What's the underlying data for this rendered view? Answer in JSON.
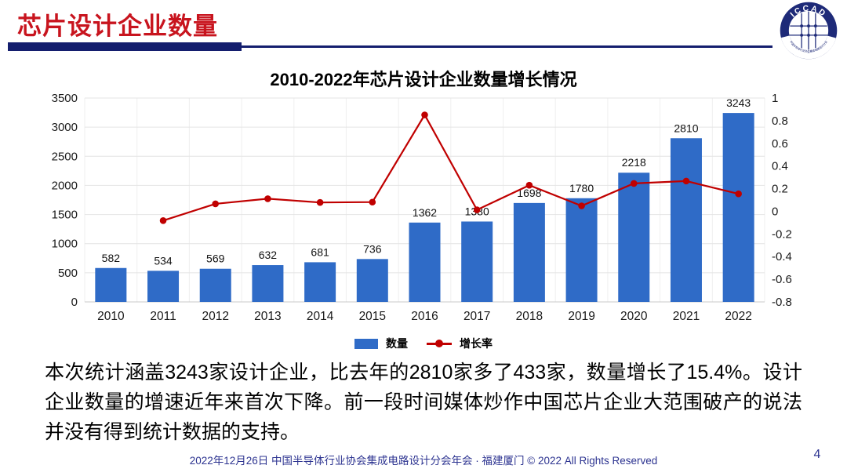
{
  "header": {
    "title": "芯片设计企业数量",
    "logo_text": "ICCAD",
    "logo_subtext": "中国半导体行业协会集成电路设计分会"
  },
  "chart_data": {
    "type": "bar",
    "title": "2010-2022年芯片设计企业数量增长情况",
    "categories": [
      "2010",
      "2011",
      "2012",
      "2013",
      "2014",
      "2015",
      "2016",
      "2017",
      "2018",
      "2019",
      "2020",
      "2021",
      "2022"
    ],
    "series": [
      {
        "name": "数量",
        "type": "bar",
        "axis": "left",
        "color": "#2f6bc7",
        "values": [
          582,
          534,
          569,
          632,
          681,
          736,
          1362,
          1380,
          1698,
          1780,
          2218,
          2810,
          3243
        ]
      },
      {
        "name": "增长率",
        "type": "line",
        "axis": "right",
        "color": "#c00000",
        "values": [
          null,
          -0.082,
          0.066,
          0.111,
          0.078,
          0.081,
          0.851,
          0.013,
          0.23,
          0.048,
          0.246,
          0.267,
          0.154
        ]
      }
    ],
    "left_axis": {
      "min": 0,
      "max": 3500,
      "ticks": [
        0,
        500,
        1000,
        1500,
        2000,
        2500,
        3000,
        3500
      ]
    },
    "right_axis": {
      "min": -0.8,
      "max": 1,
      "ticks": [
        1,
        0.8,
        0.6,
        0.4,
        0.2,
        0,
        -0.2,
        -0.4,
        -0.6,
        -0.8
      ]
    },
    "grid": true,
    "legend_position": "bottom"
  },
  "body": {
    "paragraph": "本次统计涵盖3243家设计企业，比去年的2810家多了433家，数量增长了15.4%。设计企业数量的增速近年来首次下降。前一段时间媒体炒作中国芯片企业大范围破产的说法并没有得到统计数据的支持。"
  },
  "footer": {
    "text": "2022年12月26日 中国半导体行业协会集成电路设计分会年会 · 福建厦门 © 2022 All Rights Reserved",
    "page_number": "4"
  }
}
